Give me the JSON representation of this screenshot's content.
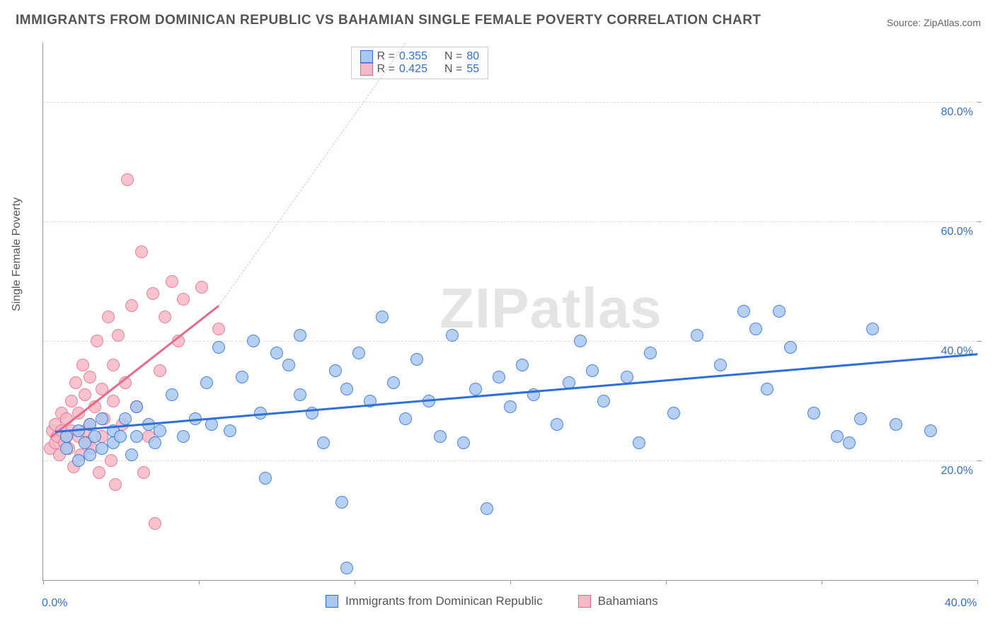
{
  "title": "IMMIGRANTS FROM DOMINICAN REPUBLIC VS BAHAMIAN SINGLE FEMALE POVERTY CORRELATION CHART",
  "source_label": "Source: ZipAtlas.com",
  "watermark": "ZIPatlas",
  "ylabel": "Single Female Poverty",
  "chart": {
    "type": "scatter",
    "xlim": [
      0,
      40
    ],
    "ylim": [
      0,
      90
    ],
    "x_ticks": [
      0,
      6.67,
      13.33,
      20,
      26.67,
      33.33,
      40
    ],
    "x_tick_labels": [
      "0.0%",
      "",
      "",
      "",
      "",
      "",
      "40.0%"
    ],
    "y_ticks": [
      20,
      40,
      60,
      80
    ],
    "y_tick_labels": [
      "20.0%",
      "40.0%",
      "60.0%",
      "80.0%"
    ],
    "grid_color": "#dddddd",
    "background_color": "#ffffff",
    "point_radius": 9,
    "point_fill_opacity": 0.25
  },
  "series": {
    "blue": {
      "label": "Immigrants from Dominican Republic",
      "stroke": "#2e6fd9",
      "fill": "#a9c8f0",
      "r": "0.355",
      "n": "80",
      "trend": {
        "x1": 0.5,
        "y1": 25,
        "x2": 40,
        "y2": 38,
        "width": 3,
        "dashed": false
      },
      "points": [
        [
          1,
          22
        ],
        [
          1,
          24
        ],
        [
          1.5,
          25
        ],
        [
          1.5,
          20
        ],
        [
          1.8,
          23
        ],
        [
          2,
          26
        ],
        [
          2,
          21
        ],
        [
          2.2,
          24
        ],
        [
          2.5,
          27
        ],
        [
          2.5,
          22
        ],
        [
          3,
          23
        ],
        [
          3,
          25
        ],
        [
          3.3,
          24
        ],
        [
          3.5,
          27
        ],
        [
          3.8,
          21
        ],
        [
          4,
          29
        ],
        [
          4,
          24
        ],
        [
          4.5,
          26
        ],
        [
          4.8,
          23
        ],
        [
          5,
          25
        ],
        [
          5.5,
          31
        ],
        [
          6,
          24
        ],
        [
          6.5,
          27
        ],
        [
          7,
          33
        ],
        [
          7.2,
          26
        ],
        [
          7.5,
          39
        ],
        [
          8,
          25
        ],
        [
          8.5,
          34
        ],
        [
          9,
          40
        ],
        [
          9.3,
          28
        ],
        [
          9.5,
          17
        ],
        [
          10,
          38
        ],
        [
          10.5,
          36
        ],
        [
          11,
          41
        ],
        [
          11,
          31
        ],
        [
          11.5,
          28
        ],
        [
          12,
          23
        ],
        [
          12.5,
          35
        ],
        [
          12.8,
          13
        ],
        [
          13,
          32
        ],
        [
          13,
          2
        ],
        [
          13.5,
          38
        ],
        [
          14,
          30
        ],
        [
          14.5,
          44
        ],
        [
          15,
          33
        ],
        [
          15.5,
          27
        ],
        [
          16,
          37
        ],
        [
          16.5,
          30
        ],
        [
          17,
          24
        ],
        [
          17.5,
          41
        ],
        [
          18,
          23
        ],
        [
          18.5,
          32
        ],
        [
          19,
          12
        ],
        [
          19.5,
          34
        ],
        [
          20,
          29
        ],
        [
          20.5,
          36
        ],
        [
          21,
          31
        ],
        [
          22,
          26
        ],
        [
          22.5,
          33
        ],
        [
          23,
          40
        ],
        [
          23.5,
          35
        ],
        [
          24,
          30
        ],
        [
          25,
          34
        ],
        [
          25.5,
          23
        ],
        [
          26,
          38
        ],
        [
          27,
          28
        ],
        [
          28,
          41
        ],
        [
          29,
          36
        ],
        [
          30,
          45
        ],
        [
          30.5,
          42
        ],
        [
          31,
          32
        ],
        [
          31.5,
          45
        ],
        [
          32,
          39
        ],
        [
          33,
          28
        ],
        [
          34,
          24
        ],
        [
          34.5,
          23
        ],
        [
          35,
          27
        ],
        [
          35.5,
          42
        ],
        [
          36.5,
          26
        ],
        [
          38,
          25
        ]
      ]
    },
    "pink": {
      "label": "Bahamians",
      "stroke": "#e86a8a",
      "fill": "#f5b9c7",
      "r": "0.425",
      "n": "55",
      "trend_solid": {
        "x1": 0.3,
        "y1": 24,
        "x2": 7.5,
        "y2": 46,
        "width": 3
      },
      "trend_dashed": {
        "x1": 7.5,
        "y1": 46,
        "x2": 15.5,
        "y2": 90
      },
      "points": [
        [
          0.3,
          22
        ],
        [
          0.4,
          25
        ],
        [
          0.5,
          23
        ],
        [
          0.5,
          26
        ],
        [
          0.6,
          24
        ],
        [
          0.7,
          21
        ],
        [
          0.8,
          25
        ],
        [
          0.8,
          28
        ],
        [
          0.9,
          23
        ],
        [
          1,
          24
        ],
        [
          1,
          27
        ],
        [
          1.1,
          22
        ],
        [
          1.2,
          30
        ],
        [
          1.2,
          25
        ],
        [
          1.3,
          19
        ],
        [
          1.4,
          33
        ],
        [
          1.5,
          24
        ],
        [
          1.5,
          28
        ],
        [
          1.6,
          21
        ],
        [
          1.7,
          36
        ],
        [
          1.8,
          25
        ],
        [
          1.8,
          31
        ],
        [
          1.9,
          23
        ],
        [
          2,
          26
        ],
        [
          2,
          34
        ],
        [
          2.1,
          22
        ],
        [
          2.2,
          29
        ],
        [
          2.3,
          40
        ],
        [
          2.4,
          18
        ],
        [
          2.5,
          32
        ],
        [
          2.5,
          24
        ],
        [
          2.6,
          27
        ],
        [
          2.8,
          44
        ],
        [
          2.9,
          20
        ],
        [
          3,
          30
        ],
        [
          3,
          36
        ],
        [
          3.1,
          16
        ],
        [
          3.2,
          41
        ],
        [
          3.4,
          26
        ],
        [
          3.5,
          33
        ],
        [
          3.6,
          67
        ],
        [
          3.8,
          46
        ],
        [
          4,
          29
        ],
        [
          4.2,
          55
        ],
        [
          4.3,
          18
        ],
        [
          4.5,
          24
        ],
        [
          4.7,
          48
        ],
        [
          4.8,
          9.5
        ],
        [
          5,
          35
        ],
        [
          5.2,
          44
        ],
        [
          5.5,
          50
        ],
        [
          5.8,
          40
        ],
        [
          6,
          47
        ],
        [
          6.8,
          49
        ],
        [
          7.5,
          42
        ]
      ]
    }
  },
  "legend_top": {
    "row1": {
      "r_label": "R =",
      "r_val": "0.355",
      "n_label": "N =",
      "n_val": "80"
    },
    "row2": {
      "r_label": "R =",
      "r_val": "0.425",
      "n_label": "N =",
      "n_val": "55"
    }
  }
}
